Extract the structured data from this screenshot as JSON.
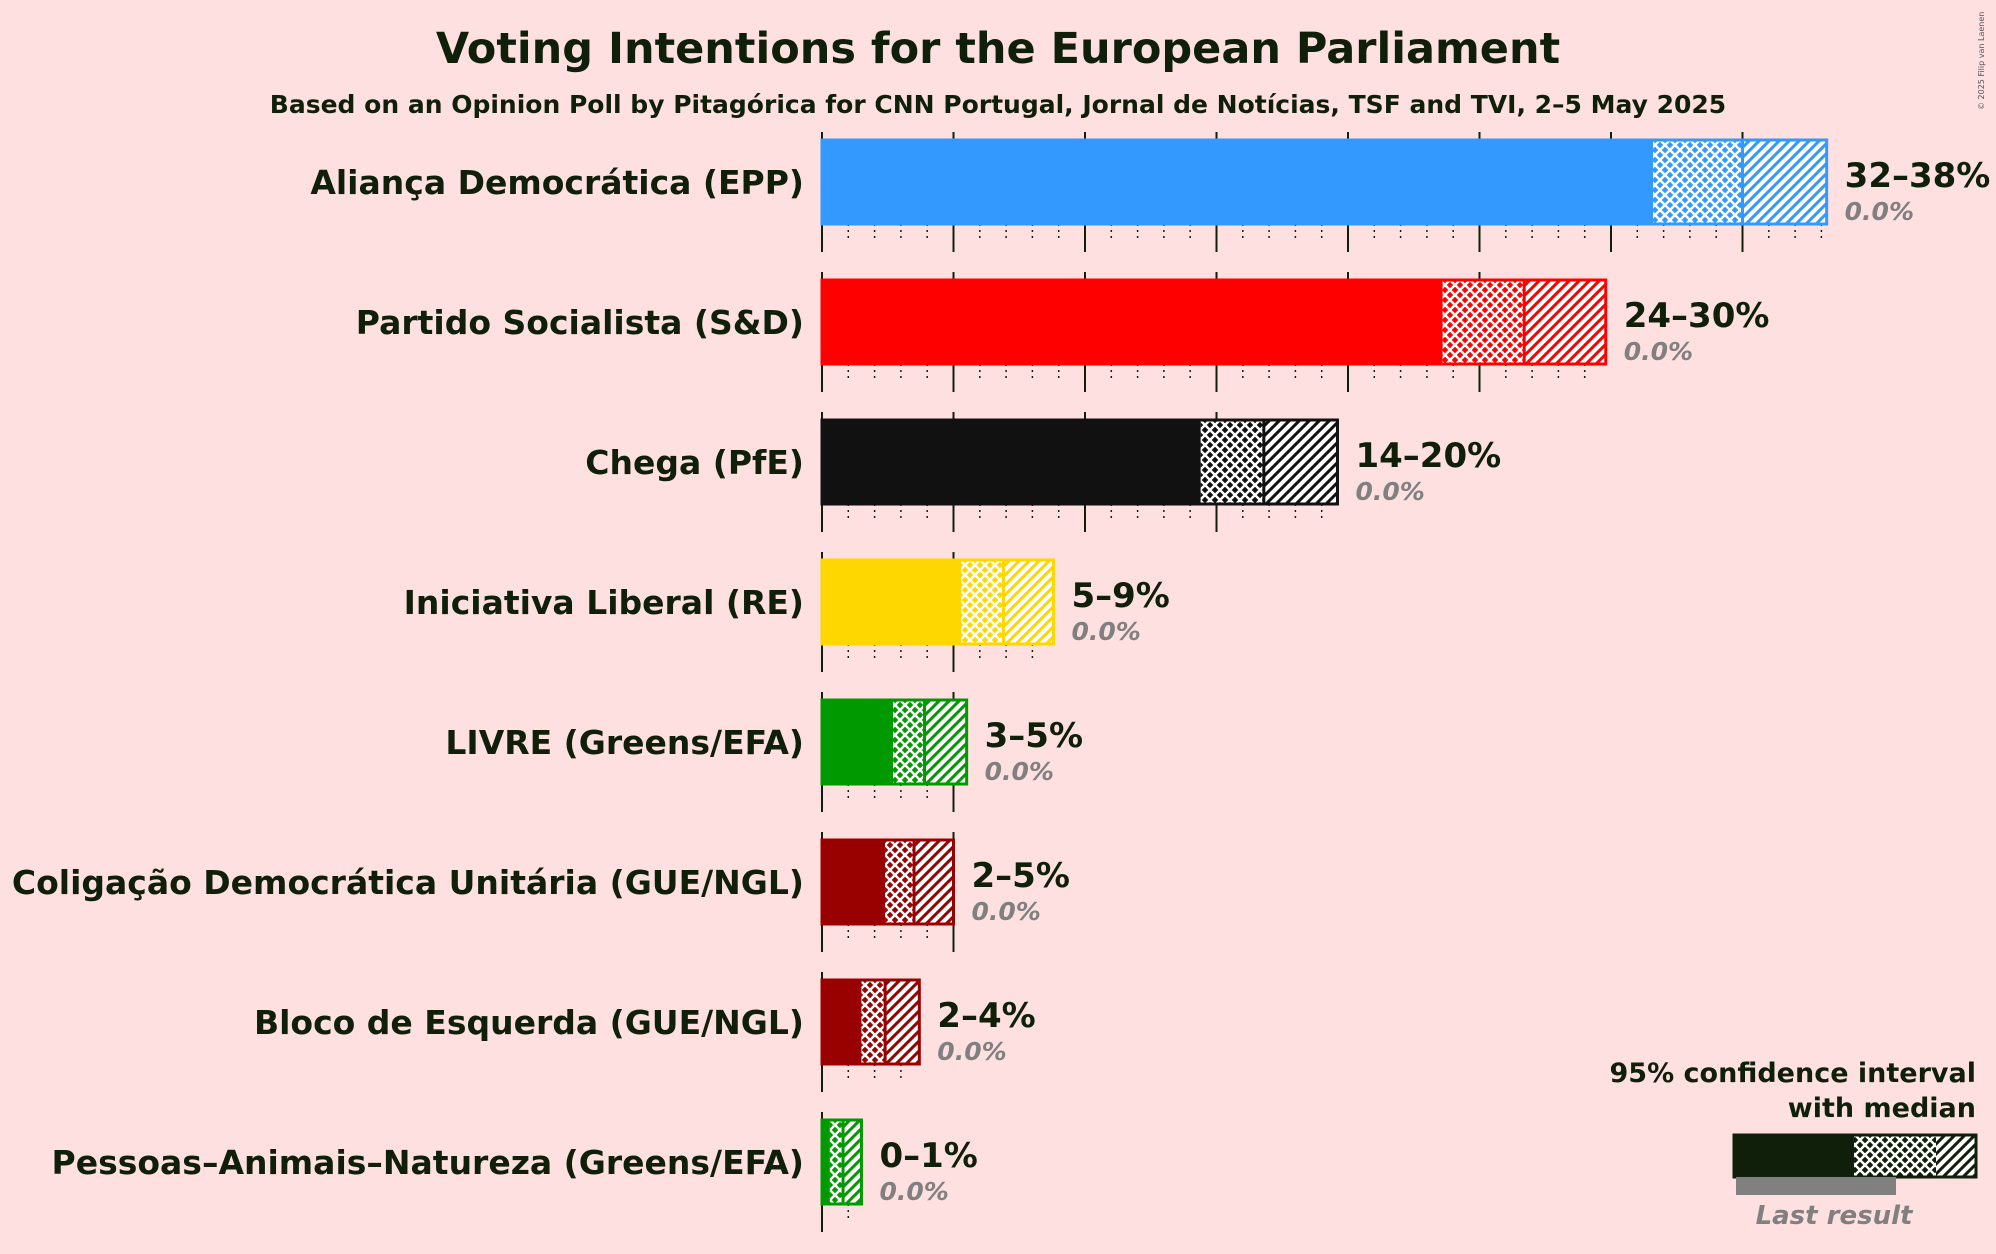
{
  "colors": {
    "background": "#FFE0E0",
    "text": "#0f1f0a",
    "last_result": "#808080"
  },
  "chart_data": {
    "type": "bar",
    "orientation": "horizontal",
    "title": "Voting Intentions for the European Parliament",
    "subtitle": "Based on an Opinion Poll by Pitagórica for CNN Portugal, Jornal de Notícias, TSF and TVI, 2–5 May 2025",
    "copyright": "© 2025 Filip van Laenen",
    "xlim": [
      0,
      40
    ],
    "parties": [
      {
        "name": "Aliança Democrática (EPP)",
        "color": "#3399FF",
        "ci95": [
          31.6,
          38.2
        ],
        "ci80": [
          33.9,
          35.0
        ],
        "median": 35.0,
        "range_label": "32–38%",
        "last_result": 0.0,
        "last_label": "0.0%"
      },
      {
        "name": "Partido Socialista (S&D)",
        "color": "#FF0000",
        "ci95": [
          23.6,
          29.8
        ],
        "ci80": [
          23.6,
          26.7
        ],
        "median": 26.7,
        "range_label": "24–30%",
        "last_result": 0.0,
        "last_label": "0.0%"
      },
      {
        "name": "Chega (PfE)",
        "color": "#111111",
        "ci95": [
          14.4,
          19.6
        ],
        "ci80": [
          14.4,
          16.8
        ],
        "median": 16.8,
        "range_label": "14–20%",
        "last_result": 0.0,
        "last_label": "0.0%"
      },
      {
        "name": "Iniciativa Liberal (RE)",
        "color": "#FFD700",
        "ci95": [
          5.3,
          8.8
        ],
        "ci80": [
          5.3,
          6.9
        ],
        "median": 6.9,
        "range_label": "5–9%",
        "last_result": 0.0,
        "last_label": "0.0%"
      },
      {
        "name": "LIVRE (Greens/EFA)",
        "color": "#009900",
        "ci95": [
          2.7,
          5.5
        ],
        "ci80": [
          2.7,
          3.9
        ],
        "median": 3.9,
        "range_label": "3–5%",
        "last_result": 0.0,
        "last_label": "0.0%"
      },
      {
        "name": "Coligação Democrática Unitária (GUE/NGL)",
        "color": "#990000",
        "ci95": [
          2.4,
          5.0
        ],
        "ci80": [
          2.4,
          3.5
        ],
        "median": 3.5,
        "range_label": "2–5%",
        "last_result": 0.0,
        "last_label": "0.0%"
      },
      {
        "name": "Bloco de Esquerda (GUE/NGL)",
        "color": "#990000",
        "ci95": [
          1.5,
          3.7
        ],
        "ci80": [
          1.5,
          2.4
        ],
        "median": 2.4,
        "range_label": "2–4%",
        "last_result": 0.0,
        "last_label": "0.0%"
      },
      {
        "name": "Pessoas–Animais–Natureza (Greens/EFA)",
        "color": "#009900",
        "ci95": [
          0.3,
          1.5
        ],
        "ci80": [
          0.3,
          0.8
        ],
        "median": 0.8,
        "range_label": "0–1%",
        "last_result": 0.0,
        "last_label": "0.0%"
      }
    ],
    "legend": {
      "line1": "95% confidence interval",
      "line2": "with median",
      "last": "Last result",
      "placement": "bottom-right"
    }
  }
}
